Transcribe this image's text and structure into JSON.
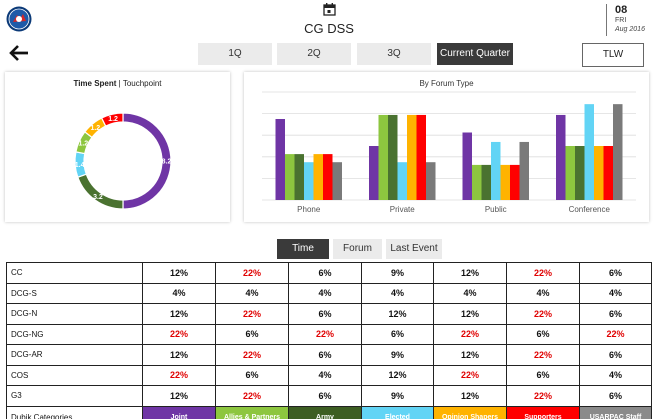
{
  "header": {
    "title": "CG DSS",
    "date": {
      "day": "08",
      "dow": "FRI",
      "month_year": "Aug 2016"
    }
  },
  "nav": {
    "quarters": [
      {
        "label": "1Q",
        "active": false
      },
      {
        "label": "2Q",
        "active": false
      },
      {
        "label": "3Q",
        "active": false
      },
      {
        "label": "Current Quarter",
        "active": true
      }
    ],
    "tlw_label": "TLW"
  },
  "colors": {
    "purple": "#6f35a5",
    "light_green": "#8dc63f",
    "dark_green": "#4a7230",
    "light_blue": "#62d4f5",
    "orange": "#ffb300",
    "red": "#ff0000",
    "gray": "#7a7a7a"
  },
  "donut": {
    "title_bold": "Time Spent",
    "title_sep": " | ",
    "title_rest": "Touchpoint"
  },
  "chart_data": [
    {
      "type": "pie",
      "title": "Time Spent | Touchpoint",
      "slices": [
        {
          "value": 8.2,
          "label": "8.2",
          "color": "#6f35a5"
        },
        {
          "value": 3.2,
          "label": "3.2",
          "color": "#4a7230"
        },
        {
          "value": 1.4,
          "label": "1.4",
          "color": "#62d4f5"
        },
        {
          "value": 1.2,
          "label": "1.2",
          "color": "#8dc63f"
        },
        {
          "value": 1.2,
          "label": "1.2",
          "color": "#ffb300"
        },
        {
          "value": 1.2,
          "label": "1.2",
          "color": "#ff0000"
        }
      ]
    },
    {
      "type": "bar",
      "title": "By Forum Type",
      "categories": [
        "Phone",
        "Private",
        "Public",
        "Conference"
      ],
      "ylim": [
        0,
        8
      ],
      "grid": true,
      "series": [
        {
          "color": "#6f35a5",
          "values": [
            6.0,
            4.0,
            5.0,
            6.3
          ]
        },
        {
          "color": "#8dc63f",
          "values": [
            3.4,
            6.3,
            2.6,
            4.0
          ]
        },
        {
          "color": "#4a7230",
          "values": [
            3.4,
            6.3,
            2.6,
            4.0
          ]
        },
        {
          "color": "#62d4f5",
          "values": [
            2.8,
            2.8,
            4.3,
            7.1
          ]
        },
        {
          "color": "#ffb300",
          "values": [
            3.4,
            6.3,
            2.6,
            4.0
          ]
        },
        {
          "color": "#ff0000",
          "values": [
            3.4,
            6.3,
            2.6,
            4.0
          ]
        },
        {
          "color": "#7a7a7a",
          "values": [
            2.8,
            2.8,
            4.3,
            7.1
          ]
        }
      ]
    }
  ],
  "tabs": [
    {
      "label": "Time",
      "active": true
    },
    {
      "label": "Forum",
      "active": false
    },
    {
      "label": "Last Event",
      "active": false
    }
  ],
  "table": {
    "rows": [
      {
        "label": "CC",
        "cells": [
          "12%",
          "22%",
          "6%",
          "9%",
          "12%",
          "22%",
          "6%"
        ]
      },
      {
        "label": "DCG-S",
        "cells": [
          "4%",
          "4%",
          "4%",
          "4%",
          "4%",
          "4%",
          "4%"
        ]
      },
      {
        "label": "DCG-N",
        "cells": [
          "12%",
          "22%",
          "6%",
          "12%",
          "12%",
          "22%",
          "6%"
        ]
      },
      {
        "label": "DCG-NG",
        "cells": [
          "22%",
          "6%",
          "22%",
          "6%",
          "22%",
          "6%",
          "22%"
        ]
      },
      {
        "label": "DCG-AR",
        "cells": [
          "12%",
          "22%",
          "6%",
          "9%",
          "12%",
          "22%",
          "6%"
        ]
      },
      {
        "label": "COS",
        "cells": [
          "22%",
          "6%",
          "4%",
          "12%",
          "22%",
          "6%",
          "4%"
        ]
      },
      {
        "label": "G3",
        "cells": [
          "12%",
          "22%",
          "6%",
          "9%",
          "12%",
          "22%",
          "6%"
        ]
      }
    ],
    "footer_label": "Dubik Categories",
    "categories": [
      {
        "label": "Joint",
        "color": "#6f35a5"
      },
      {
        "label": "Allies & Partners",
        "color": "#8dc63f"
      },
      {
        "label": "Army",
        "color": "#3d5e22"
      },
      {
        "label": "Elected",
        "color": "#62d4f5"
      },
      {
        "label": "Opinion Shapers",
        "color": "#ffb300"
      },
      {
        "label": "Supporters",
        "color": "#ff0000"
      },
      {
        "label": "USARPAC Staff",
        "color": "#8a8a8a"
      }
    ]
  }
}
